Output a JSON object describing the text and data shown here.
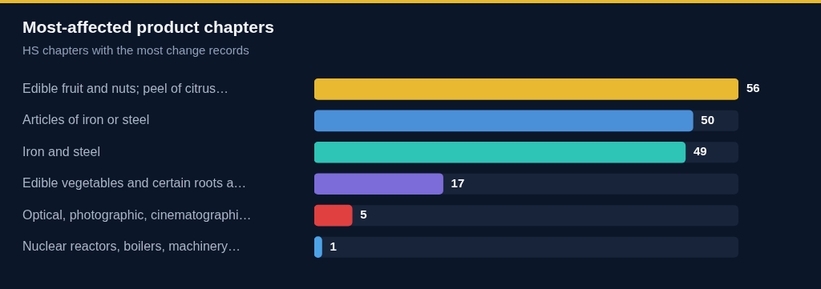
{
  "chart_data": {
    "type": "bar",
    "title": "Most-affected product chapters",
    "subtitle": "HS chapters with the most change records",
    "orientation": "horizontal",
    "categories": [
      "Edible fruit and nuts; peel of citrus…",
      "Articles of iron or steel",
      "Iron and steel",
      "Edible vegetables and certain roots a…",
      "Optical, photographic, cinematographi…",
      "Nuclear reactors, boilers, machinery…"
    ],
    "values": [
      56,
      50,
      49,
      17,
      5,
      1
    ],
    "colors": [
      "#e8b931",
      "#4a90d9",
      "#2ec4b6",
      "#7b6cd9",
      "#e04040",
      "#4da3e8"
    ],
    "xlim": [
      0,
      56
    ],
    "data_labels": true,
    "grid": false,
    "legend": false,
    "tick_labels": "y"
  }
}
